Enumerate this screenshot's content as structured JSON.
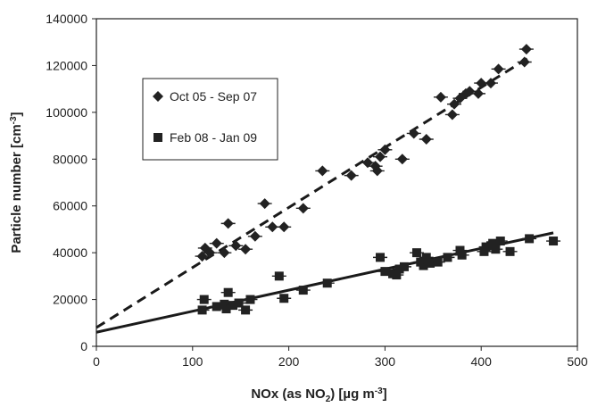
{
  "chart_data": {
    "type": "scatter",
    "title": "",
    "xlabel": "NOx (as NO",
    "xlabel_sub": "2",
    "xlabel_tail": ") [µg m",
    "xlabel_sup": "-3",
    "xlabel_end": "]",
    "ylabel": "Particle number [cm",
    "ylabel_sup": "-3",
    "ylabel_end": "]",
    "xlim": [
      0,
      500
    ],
    "ylim": [
      0,
      140000
    ],
    "xticks": [
      0,
      100,
      200,
      300,
      400,
      500
    ],
    "yticks": [
      0,
      20000,
      40000,
      60000,
      80000,
      100000,
      120000,
      140000
    ],
    "grid": false,
    "legend_position": "top-left",
    "series": [
      {
        "name": "Oct 05 - Sep 07",
        "marker": "diamond",
        "color": "#222222",
        "trend": {
          "style": "dashed",
          "x": [
            0,
            452
          ],
          "y": [
            8000,
            124000
          ]
        },
        "points": [
          [
            110,
            38500
          ],
          [
            113,
            42000
          ],
          [
            118,
            40000
          ],
          [
            125,
            44000
          ],
          [
            133,
            40000
          ],
          [
            137,
            52500
          ],
          [
            145,
            43000
          ],
          [
            155,
            41500
          ],
          [
            165,
            47000
          ],
          [
            175,
            61000
          ],
          [
            183,
            51000
          ],
          [
            195,
            51000
          ],
          [
            215,
            59000
          ],
          [
            235,
            75000
          ],
          [
            265,
            73000
          ],
          [
            282,
            78500
          ],
          [
            290,
            77000
          ],
          [
            292,
            75000
          ],
          [
            295,
            81000
          ],
          [
            300,
            84000
          ],
          [
            318,
            80000
          ],
          [
            330,
            91000
          ],
          [
            343,
            88500
          ],
          [
            358,
            106500
          ],
          [
            370,
            99000
          ],
          [
            372,
            103500
          ],
          [
            378,
            106000
          ],
          [
            384,
            108000
          ],
          [
            388,
            109000
          ],
          [
            397,
            108000
          ],
          [
            400,
            112500
          ],
          [
            410,
            112500
          ],
          [
            418,
            118500
          ],
          [
            445,
            121500
          ],
          [
            447,
            127000
          ]
        ]
      },
      {
        "name": "Feb 08 - Jan 09",
        "marker": "square",
        "color": "#222222",
        "trend": {
          "style": "solid",
          "x": [
            0,
            300,
            475
          ],
          "y": [
            6000,
            33000,
            48500
          ]
        },
        "points": [
          [
            110,
            15500
          ],
          [
            112,
            20000
          ],
          [
            125,
            17000
          ],
          [
            133,
            18000
          ],
          [
            135,
            16000
          ],
          [
            137,
            23000
          ],
          [
            142,
            17500
          ],
          [
            148,
            18500
          ],
          [
            155,
            15500
          ],
          [
            160,
            20000
          ],
          [
            190,
            30000
          ],
          [
            195,
            20500
          ],
          [
            215,
            24000
          ],
          [
            240,
            27000
          ],
          [
            295,
            38000
          ],
          [
            300,
            32000
          ],
          [
            308,
            31000
          ],
          [
            312,
            30500
          ],
          [
            315,
            33000
          ],
          [
            320,
            34000
          ],
          [
            333,
            40000
          ],
          [
            337,
            36000
          ],
          [
            340,
            34500
          ],
          [
            343,
            38000
          ],
          [
            347,
            35500
          ],
          [
            355,
            36000
          ],
          [
            365,
            38000
          ],
          [
            378,
            41000
          ],
          [
            380,
            39000
          ],
          [
            403,
            40500
          ],
          [
            405,
            42500
          ],
          [
            410,
            43000
          ],
          [
            412,
            44000
          ],
          [
            415,
            41500
          ],
          [
            420,
            45000
          ],
          [
            430,
            40500
          ],
          [
            450,
            46000
          ],
          [
            475,
            45000
          ]
        ]
      }
    ]
  }
}
